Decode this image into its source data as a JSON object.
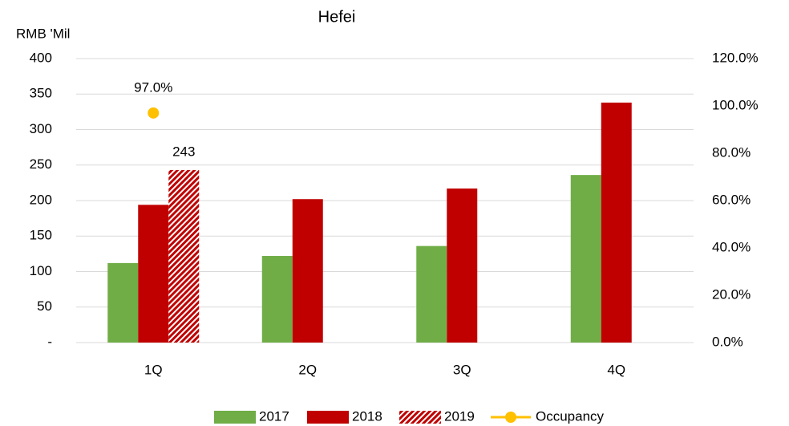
{
  "chart_data": {
    "type": "bar",
    "title": "Hefei",
    "y_label": "RMB 'Mil",
    "categories": [
      "1Q",
      "2Q",
      "3Q",
      "4Q"
    ],
    "series": [
      {
        "name": "2017",
        "color": "#70ad47",
        "values": [
          112,
          122,
          136,
          236
        ]
      },
      {
        "name": "2018",
        "color": "#c00000",
        "values": [
          194,
          202,
          217,
          338
        ]
      },
      {
        "name": "2019",
        "color": "#c00000",
        "pattern": "hatch",
        "values": [
          243,
          null,
          null,
          null
        ]
      },
      {
        "name": "Occupancy",
        "color": "#ffc000",
        "type": "line",
        "axis": "y2",
        "values": [
          97.0,
          null,
          null,
          null
        ],
        "value_labels": [
          "97.0%",
          null,
          null,
          null
        ]
      }
    ],
    "data_labels": true,
    "ylim": [
      0,
      400
    ],
    "yticks": [
      {
        "value": 0,
        "label": "-"
      },
      50,
      100,
      150,
      200,
      250,
      300,
      350,
      400
    ],
    "y2lim": [
      0,
      120
    ],
    "y2ticks": [
      {
        "value": 0,
        "label": "0.0%"
      },
      {
        "value": 20,
        "label": "20.0%"
      },
      {
        "value": 40,
        "label": "40.0%"
      },
      {
        "value": 60,
        "label": "60.0%"
      },
      {
        "value": 80,
        "label": "80.0%"
      },
      {
        "value": 100,
        "label": "100.0%"
      },
      {
        "value": 120,
        "label": "120.0%"
      }
    ],
    "grid": true,
    "legend": "bottom"
  }
}
